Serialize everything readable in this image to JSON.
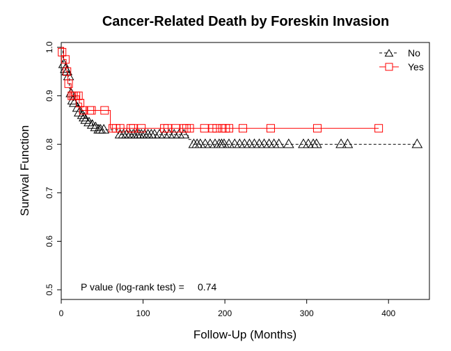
{
  "chart_data": {
    "type": "line",
    "title": "Cancer-Related Death by Foreskin Invasion",
    "xlabel": "Follow-Up (Months)",
    "ylabel": "Survival Function",
    "xlim": [
      0,
      450
    ],
    "ylim": [
      0.48,
      1.01
    ],
    "xticks": [
      "0",
      "100",
      "200",
      "300",
      "400"
    ],
    "yticks": [
      "0.5",
      "0.6",
      "0.7",
      "0.8",
      "0.9",
      "1.0"
    ],
    "legend_position": "top-right",
    "annotation": {
      "label": "P value (log-rank test) =",
      "value": "0.74"
    },
    "series": [
      {
        "name": "No",
        "color": "#000000",
        "line_style": "dashed",
        "marker": "triangle-icon",
        "steps": [
          [
            0,
            1.0
          ],
          [
            2,
            0.97
          ],
          [
            5,
            0.955
          ],
          [
            8,
            0.94
          ],
          [
            10,
            0.915
          ],
          [
            12,
            0.905
          ],
          [
            15,
            0.89
          ],
          [
            18,
            0.88
          ],
          [
            22,
            0.865
          ],
          [
            27,
            0.855
          ],
          [
            32,
            0.848
          ],
          [
            38,
            0.84
          ],
          [
            45,
            0.83
          ],
          [
            70,
            0.82
          ],
          [
            155,
            0.81
          ],
          [
            160,
            0.8
          ]
        ],
        "end": 435,
        "censored": [
          [
            3,
            0.965
          ],
          [
            5,
            0.955
          ],
          [
            7,
            0.95
          ],
          [
            9,
            0.94
          ],
          [
            12,
            0.905
          ],
          [
            14,
            0.89
          ],
          [
            16,
            0.885
          ],
          [
            20,
            0.875
          ],
          [
            22,
            0.865
          ],
          [
            26,
            0.86
          ],
          [
            28,
            0.855
          ],
          [
            30,
            0.85
          ],
          [
            34,
            0.845
          ],
          [
            38,
            0.84
          ],
          [
            42,
            0.835
          ],
          [
            46,
            0.83
          ],
          [
            48,
            0.83
          ],
          [
            52,
            0.83
          ],
          [
            72,
            0.82
          ],
          [
            76,
            0.82
          ],
          [
            80,
            0.82
          ],
          [
            84,
            0.82
          ],
          [
            88,
            0.82
          ],
          [
            92,
            0.82
          ],
          [
            95,
            0.82
          ],
          [
            98,
            0.82
          ],
          [
            102,
            0.82
          ],
          [
            106,
            0.82
          ],
          [
            110,
            0.82
          ],
          [
            114,
            0.82
          ],
          [
            120,
            0.82
          ],
          [
            126,
            0.82
          ],
          [
            132,
            0.82
          ],
          [
            138,
            0.82
          ],
          [
            144,
            0.82
          ],
          [
            150,
            0.82
          ],
          [
            162,
            0.8
          ],
          [
            166,
            0.8
          ],
          [
            170,
            0.8
          ],
          [
            176,
            0.8
          ],
          [
            182,
            0.8
          ],
          [
            188,
            0.8
          ],
          [
            193,
            0.8
          ],
          [
            196,
            0.8
          ],
          [
            199,
            0.8
          ],
          [
            205,
            0.8
          ],
          [
            212,
            0.8
          ],
          [
            218,
            0.8
          ],
          [
            224,
            0.8
          ],
          [
            230,
            0.8
          ],
          [
            236,
            0.8
          ],
          [
            242,
            0.8
          ],
          [
            248,
            0.8
          ],
          [
            254,
            0.8
          ],
          [
            260,
            0.8
          ],
          [
            266,
            0.8
          ],
          [
            278,
            0.8
          ],
          [
            296,
            0.8
          ],
          [
            302,
            0.8
          ],
          [
            308,
            0.8
          ],
          [
            312,
            0.8
          ],
          [
            342,
            0.8
          ],
          [
            350,
            0.8
          ],
          [
            435,
            0.8
          ]
        ]
      },
      {
        "name": "Yes",
        "color": "#ff0000",
        "line_style": "solid",
        "marker": "square-icon",
        "steps": [
          [
            0,
            1.0
          ],
          [
            3,
            0.975
          ],
          [
            6,
            0.95
          ],
          [
            8,
            0.925
          ],
          [
            12,
            0.9
          ],
          [
            22,
            0.885
          ],
          [
            25,
            0.87
          ],
          [
            60,
            0.833
          ]
        ],
        "end": 388,
        "censored": [
          [
            1,
            0.99
          ],
          [
            5,
            0.975
          ],
          [
            7,
            0.95
          ],
          [
            9,
            0.925
          ],
          [
            13,
            0.9
          ],
          [
            15,
            0.9
          ],
          [
            18,
            0.9
          ],
          [
            21,
            0.9
          ],
          [
            23,
            0.885
          ],
          [
            27,
            0.87
          ],
          [
            35,
            0.87
          ],
          [
            37,
            0.87
          ],
          [
            53,
            0.87
          ],
          [
            63,
            0.833
          ],
          [
            67,
            0.833
          ],
          [
            72,
            0.833
          ],
          [
            85,
            0.833
          ],
          [
            88,
            0.833
          ],
          [
            98,
            0.833
          ],
          [
            126,
            0.833
          ],
          [
            130,
            0.833
          ],
          [
            140,
            0.833
          ],
          [
            150,
            0.833
          ],
          [
            153,
            0.833
          ],
          [
            157,
            0.833
          ],
          [
            175,
            0.833
          ],
          [
            185,
            0.833
          ],
          [
            190,
            0.833
          ],
          [
            197,
            0.833
          ],
          [
            201,
            0.833
          ],
          [
            205,
            0.833
          ],
          [
            222,
            0.833
          ],
          [
            256,
            0.833
          ],
          [
            313,
            0.833
          ],
          [
            388,
            0.833
          ]
        ]
      }
    ]
  }
}
